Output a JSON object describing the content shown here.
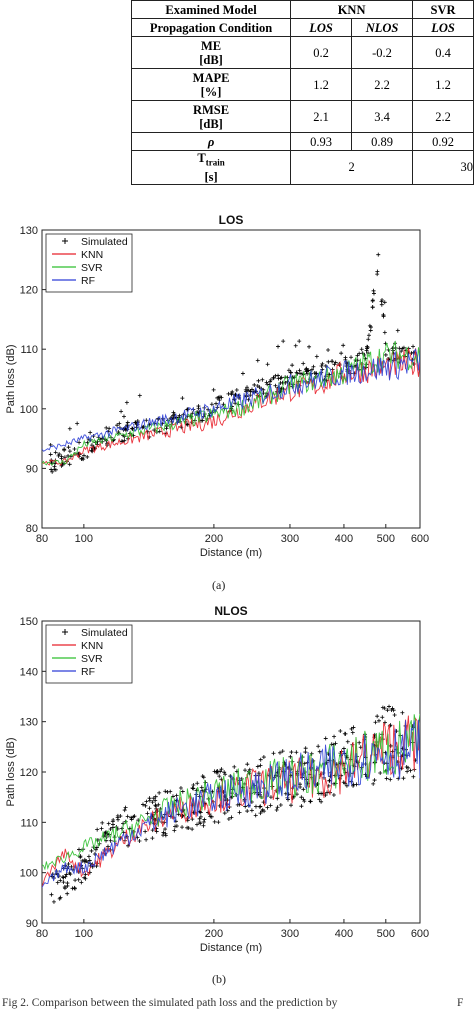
{
  "table": {
    "header1": [
      "Examined Model",
      "KNN",
      "SVR"
    ],
    "header2": [
      "Propagation Condition",
      "LOS",
      "NLOS",
      "LOS"
    ],
    "rows": [
      {
        "label1": "ME",
        "label2": "[dB]",
        "values": [
          "0.2",
          "-0.2",
          "0.4"
        ]
      },
      {
        "label1": "MAPE",
        "label2": "[%]",
        "values": [
          "1.2",
          "2.2",
          "1.2"
        ]
      },
      {
        "label1": "RMSE",
        "label2": "[dB]",
        "values": [
          "2.1",
          "3.4",
          "2.2"
        ]
      },
      {
        "label1": "ρ",
        "label2": "",
        "values": [
          "0.93",
          "0.89",
          "0.92"
        ]
      }
    ],
    "ttrain": {
      "label_main": "T",
      "label_sub": "train",
      "label2": "[s]",
      "knn": "2",
      "svr": "30"
    }
  },
  "chart_data": [
    {
      "type": "line",
      "title": "LOS",
      "xlabel": "Distance (m)",
      "ylabel": "Path loss (dB)",
      "xscale": "log",
      "xlim": [
        80,
        600
      ],
      "ylim": [
        80,
        130
      ],
      "xticks": [
        80,
        100,
        200,
        300,
        400,
        500,
        600
      ],
      "yticks": [
        80,
        90,
        100,
        110,
        120,
        130
      ],
      "legend": {
        "placement": "top-left",
        "entries": [
          "Simulated",
          "KNN",
          "SVR",
          "RF"
        ]
      },
      "colors": {
        "Simulated": "#000000",
        "KNN": "#e8202a",
        "SVR": "#2fbf2f",
        "RF": "#2d3fd6"
      },
      "series": [
        {
          "name": "Simulated",
          "x": [
            85,
            90,
            100,
            110,
            120,
            150,
            180,
            200,
            250,
            300,
            350,
            400,
            450,
            480,
            500,
            550,
            600
          ],
          "y": [
            91,
            92,
            93,
            95,
            96,
            97,
            99,
            100,
            103,
            105,
            106,
            107,
            108,
            125,
            110,
            109,
            109
          ]
        },
        {
          "name": "KNN",
          "x": [
            80,
            90,
            100,
            150,
            200,
            250,
            300,
            350,
            400,
            500,
            600
          ],
          "y": [
            91,
            91,
            93,
            96,
            98,
            101,
            103,
            104,
            106,
            107,
            108
          ]
        },
        {
          "name": "SVR",
          "x": [
            80,
            90,
            100,
            150,
            200,
            250,
            300,
            350,
            400,
            500,
            600
          ],
          "y": [
            91,
            91,
            94,
            97,
            99,
            101,
            104,
            105,
            106,
            109,
            109
          ]
        },
        {
          "name": "RF",
          "x": [
            80,
            90,
            100,
            150,
            200,
            250,
            300,
            350,
            400,
            500,
            600
          ],
          "y": [
            93,
            94,
            95,
            98,
            100,
            102,
            104,
            105,
            106,
            107,
            108
          ]
        }
      ]
    },
    {
      "type": "line",
      "title": "NLOS",
      "xlabel": "Distance (m)",
      "ylabel": "Path loss (dB)",
      "xscale": "log",
      "xlim": [
        80,
        600
      ],
      "ylim": [
        90,
        150
      ],
      "xticks": [
        80,
        100,
        200,
        300,
        400,
        500,
        600
      ],
      "yticks": [
        90,
        100,
        110,
        120,
        130,
        140,
        150
      ],
      "legend": {
        "placement": "top-left",
        "entries": [
          "Simulated",
          "KNN",
          "SVR",
          "RF"
        ]
      },
      "colors": {
        "Simulated": "#000000",
        "KNN": "#e8202a",
        "SVR": "#2fbf2f",
        "RF": "#2d3fd6"
      },
      "series": [
        {
          "name": "Simulated",
          "x": [
            85,
            95,
            110,
            130,
            160,
            200,
            250,
            300,
            350,
            400,
            450,
            500,
            550
          ],
          "y": [
            97,
            100,
            106,
            110,
            112,
            115,
            117,
            119,
            120,
            122,
            124,
            126,
            125
          ]
        },
        {
          "name": "KNN",
          "x": [
            80,
            90,
            100,
            130,
            160,
            200,
            250,
            300,
            350,
            400,
            500,
            600
          ],
          "y": [
            98,
            104,
            100,
            108,
            112,
            115,
            117,
            118,
            119,
            121,
            125,
            126
          ]
        },
        {
          "name": "SVR",
          "x": [
            80,
            90,
            100,
            130,
            160,
            200,
            250,
            300,
            350,
            400,
            500,
            600
          ],
          "y": [
            101,
            103,
            105,
            109,
            113,
            116,
            118,
            119,
            120,
            122,
            124,
            126
          ]
        },
        {
          "name": "RF",
          "x": [
            80,
            90,
            100,
            130,
            160,
            200,
            250,
            300,
            350,
            400,
            500,
            600
          ],
          "y": [
            97,
            101,
            101,
            108,
            112,
            115,
            117,
            119,
            120,
            122,
            124,
            125
          ]
        }
      ]
    }
  ],
  "subcaptions": [
    "(a)",
    "(b)"
  ],
  "caption": "Fig 2. Comparison between the simulated path loss and the prediction by",
  "caption_right": "F"
}
